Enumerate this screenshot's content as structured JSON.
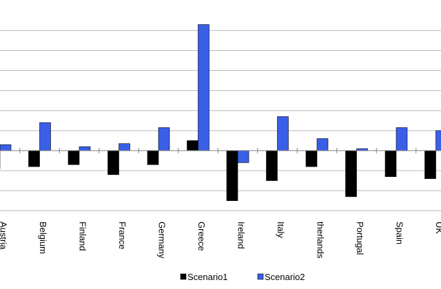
{
  "chart_data": {
    "type": "bar",
    "categories": [
      "Austria",
      "Belgium",
      "Finland",
      "France",
      "Germany",
      "Greece",
      "Ireland",
      "Italy",
      "therlands",
      "Portugal",
      "Spain",
      "UK"
    ],
    "series": [
      {
        "name": "Scenario1",
        "color": "#000000",
        "values": [
          -0.9,
          -0.8,
          -0.7,
          -1.2,
          -0.7,
          0.5,
          -2.5,
          -1.5,
          -0.8,
          -2.3,
          -1.3,
          -1.4
        ]
      },
      {
        "name": "Scenario2",
        "color": "#3a5fe6",
        "values": [
          0.3,
          1.4,
          0.2,
          0.35,
          1.15,
          6.3,
          -0.6,
          1.7,
          0.6,
          0.1,
          1.15,
          1.0
        ]
      }
    ],
    "ylim": [
      -3.2,
      6.7
    ],
    "grid": true,
    "legend_position": "bottom"
  }
}
